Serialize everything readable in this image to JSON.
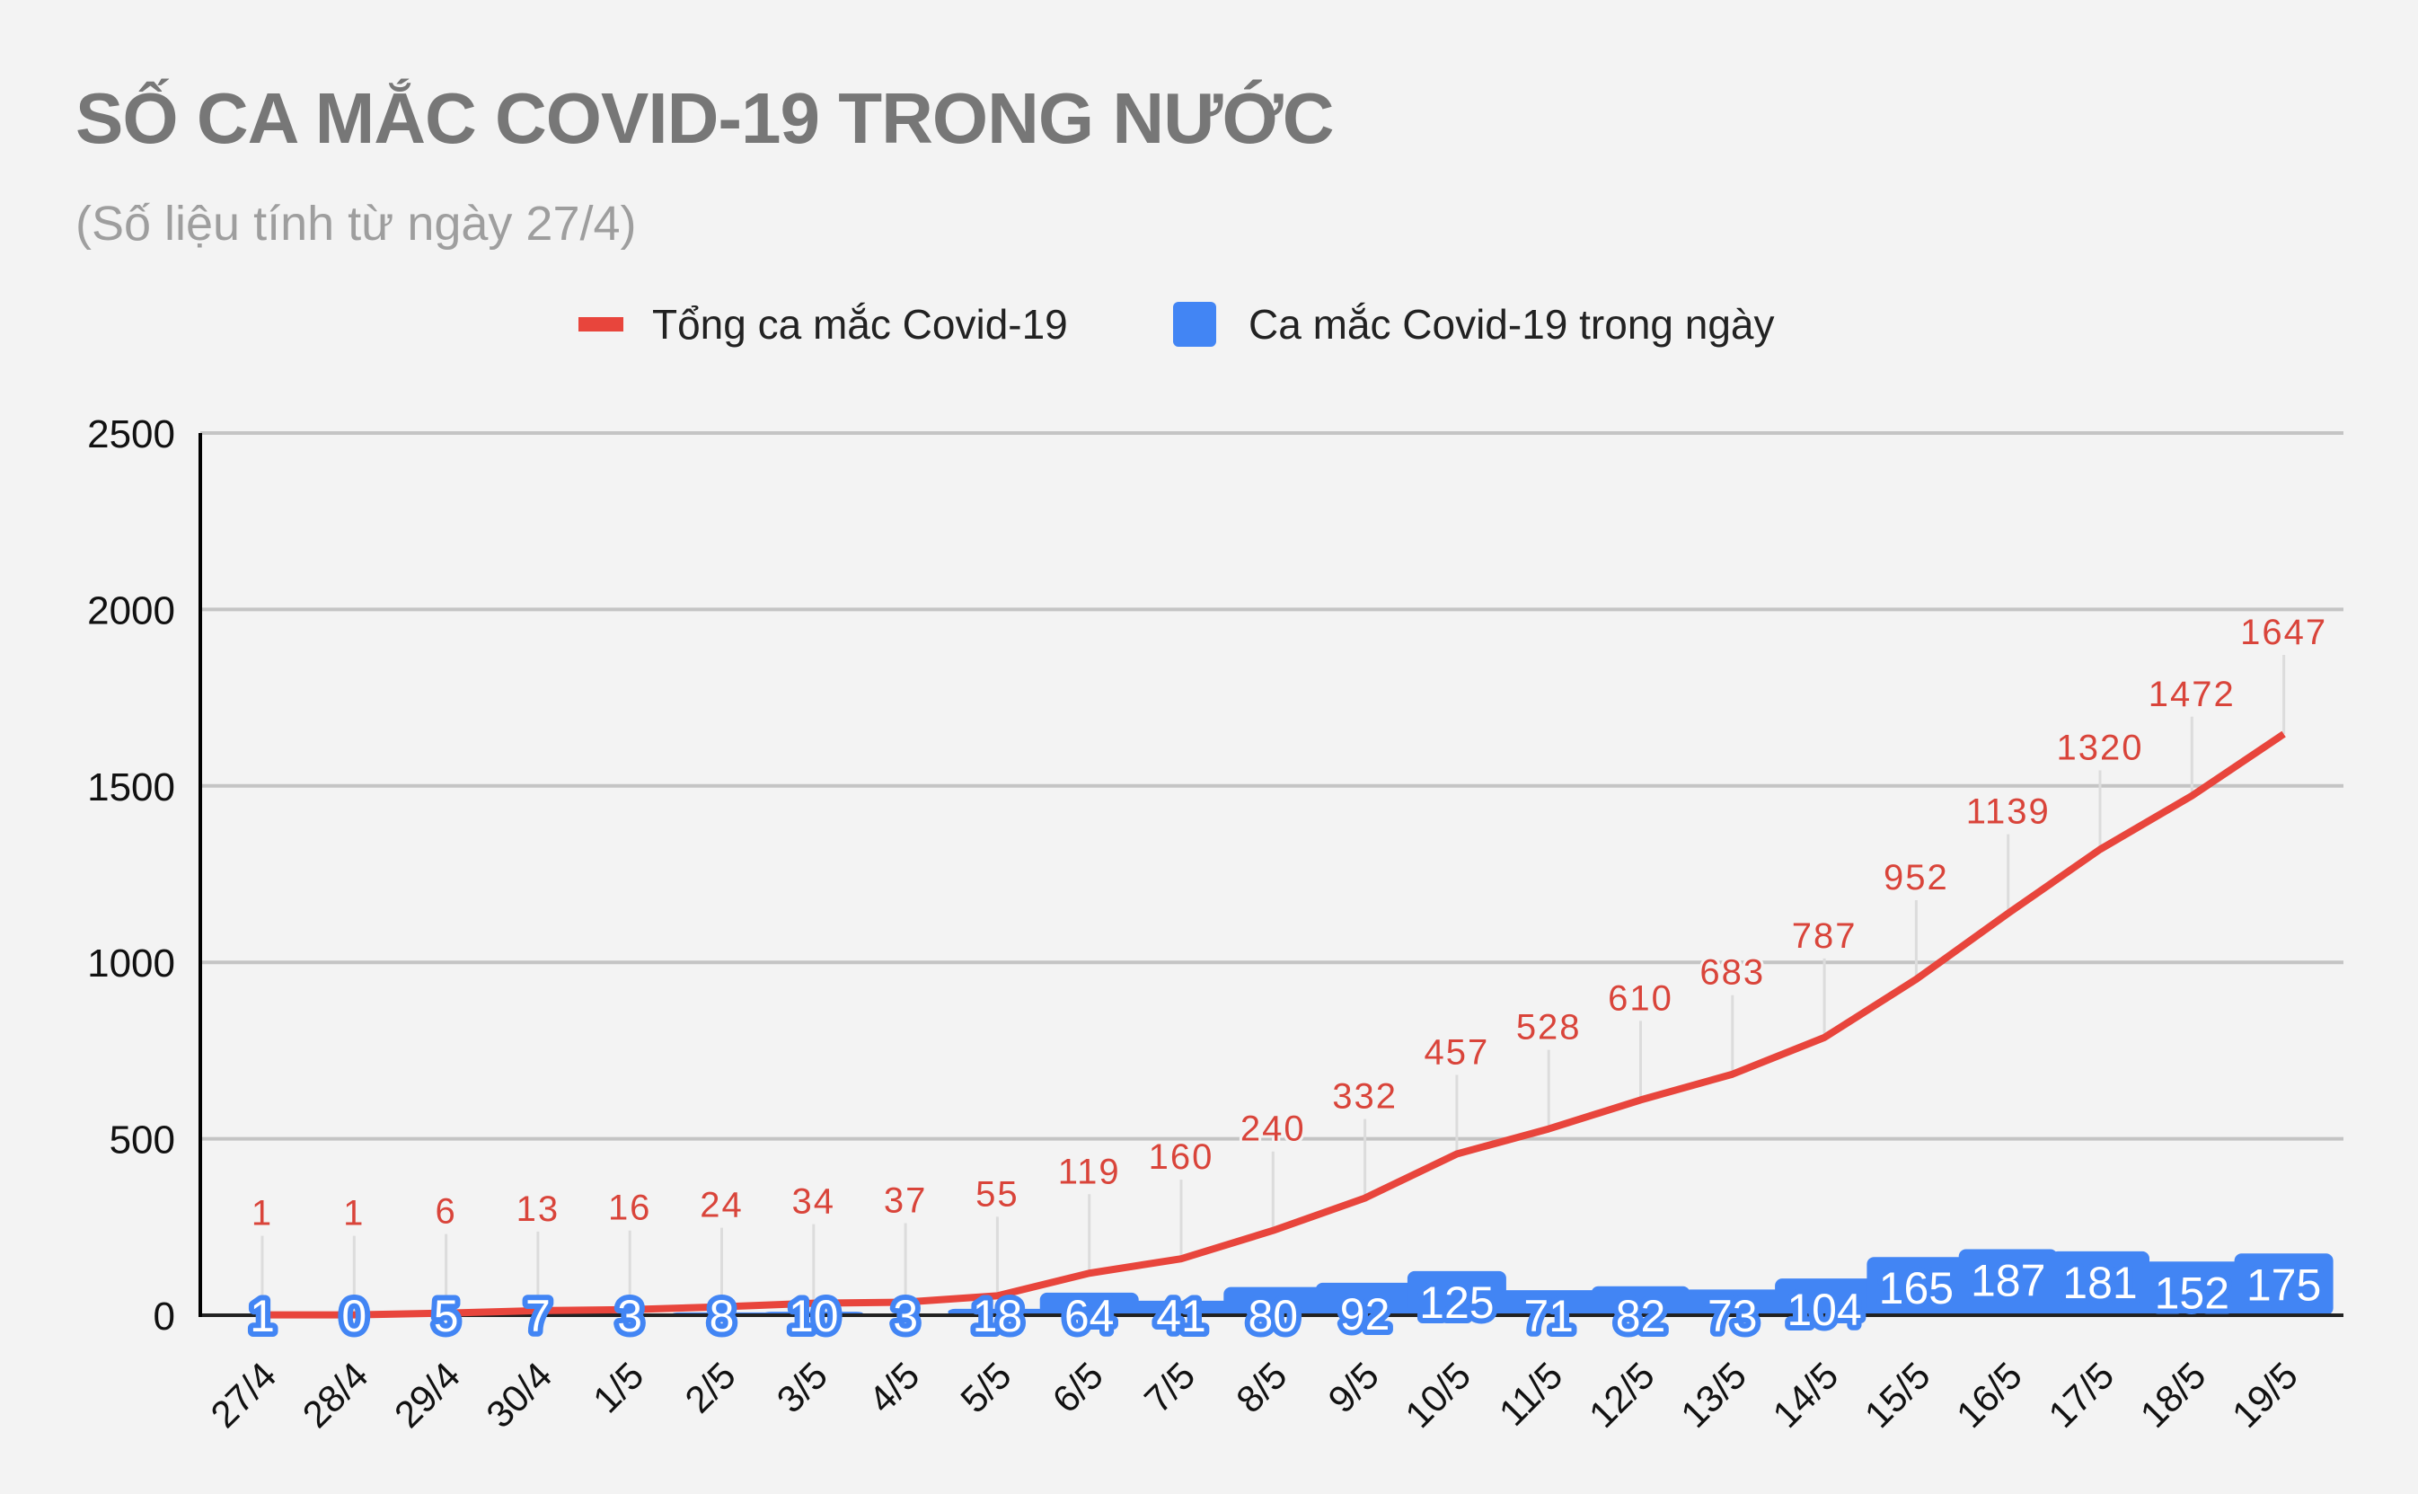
{
  "header": {
    "title": "SỐ CA MẮC COVID-19 TRONG NƯỚC",
    "subtitle": "(Số liệu tính từ ngày 27/4)"
  },
  "legend": [
    {
      "label": "Tổng ca mắc Covid-19",
      "color": "#e8453c",
      "shape": "line"
    },
    {
      "label": "Ca mắc Covid-19 trong ngày",
      "color": "#4285f4",
      "shape": "box"
    }
  ],
  "colors": {
    "background": "#f3f3f3",
    "line": "#e8453c",
    "bar": "#4285f4",
    "label_red": "#d9443a",
    "grid": "#c4c4c4",
    "axis": "#222222"
  },
  "chart_data": {
    "type": "bar+line",
    "title": "SỐ CA MẮC COVID-19 TRONG NƯỚC",
    "subtitle": "(Số liệu tính từ ngày 27/4)",
    "xlabel": "",
    "ylabel": "",
    "ylim": [
      0,
      2500
    ],
    "yticks": [
      0,
      500,
      1000,
      1500,
      2000,
      2500
    ],
    "grid": true,
    "legend_position": "top",
    "categories": [
      "27/4",
      "28/4",
      "29/4",
      "30/4",
      "1/5",
      "2/5",
      "3/5",
      "4/5",
      "5/5",
      "6/5",
      "7/5",
      "8/5",
      "9/5",
      "10/5",
      "11/5",
      "12/5",
      "13/5",
      "14/5",
      "15/5",
      "16/5",
      "17/5",
      "18/5",
      "19/5"
    ],
    "series": [
      {
        "name": "Tổng ca mắc Covid-19",
        "type": "line",
        "color": "#e8453c",
        "values": [
          1,
          1,
          6,
          13,
          16,
          24,
          34,
          37,
          55,
          119,
          160,
          240,
          332,
          457,
          528,
          610,
          683,
          787,
          952,
          1139,
          1320,
          1472,
          1647
        ]
      },
      {
        "name": "Ca mắc Covid-19 trong ngày",
        "type": "bar",
        "color": "#4285f4",
        "values": [
          1,
          0,
          5,
          7,
          3,
          8,
          10,
          3,
          18,
          64,
          41,
          80,
          92,
          125,
          71,
          82,
          73,
          104,
          165,
          187,
          181,
          152,
          175
        ]
      }
    ]
  }
}
